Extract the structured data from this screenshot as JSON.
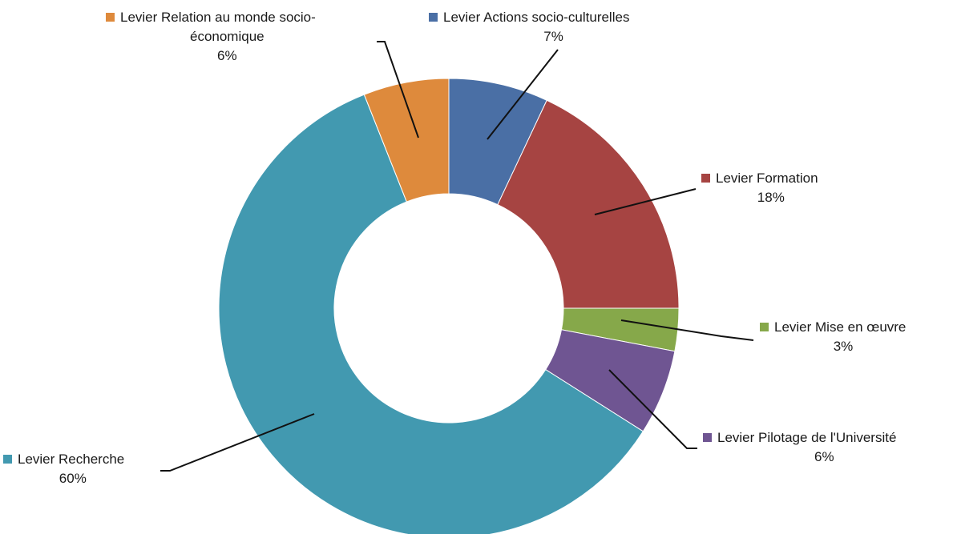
{
  "chart_data": {
    "type": "pie",
    "variant": "donut",
    "start": "top",
    "direction": "clockwise",
    "legend_markers": "inline-with-labels",
    "slices": [
      {
        "name": "Levier Actions socio-culturelles",
        "value": 7,
        "label_lines": [
          "Levier Actions socio-culturelles"
        ],
        "pct_text": "7%",
        "color": "#4a6fa5"
      },
      {
        "name": "Levier Formation",
        "value": 18,
        "label_lines": [
          "Levier Formation"
        ],
        "pct_text": "18%",
        "color": "#a64442"
      },
      {
        "name": "Levier Mise en œuvre",
        "value": 3,
        "label_lines": [
          "Levier Mise en œuvre"
        ],
        "pct_text": "3%",
        "color": "#86a84a"
      },
      {
        "name": "Levier Pilotage de l'Université",
        "value": 6,
        "label_lines": [
          "Levier Pilotage de l'Université"
        ],
        "pct_text": "6%",
        "color": "#6f5592"
      },
      {
        "name": "Levier Recherche",
        "value": 60,
        "label_lines": [
          "Levier Recherche"
        ],
        "pct_text": "60%",
        "color": "#4299b0"
      },
      {
        "name": "Levier Relation au monde socio-économique",
        "value": 6,
        "label_lines": [
          "Levier Relation au monde socio-",
          "économique"
        ],
        "pct_text": "6%",
        "color": "#de8a3c"
      }
    ]
  }
}
